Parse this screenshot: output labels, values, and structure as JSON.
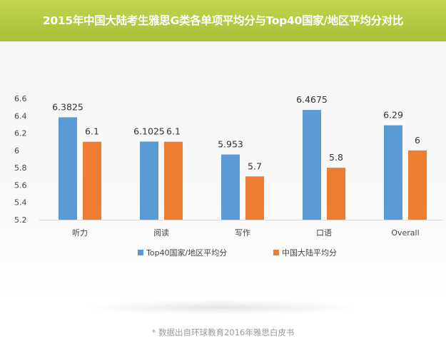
{
  "title": "2015年中国大陆考生雅思G类各单项平均分与Top40国家/地区平均分对比",
  "footnote": "* 数据出自环球教育2016年雅思白皮书",
  "colors": {
    "banner": "#b3c844",
    "series_top40": "#5b9bd5",
    "series_china": "#ed7d31"
  },
  "chart_data": {
    "type": "bar",
    "categories": [
      "听力",
      "阅读",
      "写作",
      "口语",
      "Overall"
    ],
    "series": [
      {
        "name": "Top40国家/地区平均分",
        "values": [
          6.3825,
          6.1025,
          5.953,
          6.4675,
          6.29
        ],
        "labels": [
          "6.3825",
          "6.1025",
          "5.953",
          "6.4675",
          "6.29"
        ]
      },
      {
        "name": "中国大陆平均分",
        "values": [
          6.1,
          6.1,
          5.7,
          5.8,
          6
        ],
        "labels": [
          "6.1",
          "6.1",
          "5.7",
          "5.8",
          "6"
        ]
      }
    ],
    "ylim": [
      5.2,
      6.6
    ],
    "yticks": [
      "5.2",
      "5.4",
      "5.6",
      "5.8",
      "6",
      "6.2",
      "6.4",
      "6.6"
    ],
    "grid": false,
    "legend_position": "bottom"
  }
}
